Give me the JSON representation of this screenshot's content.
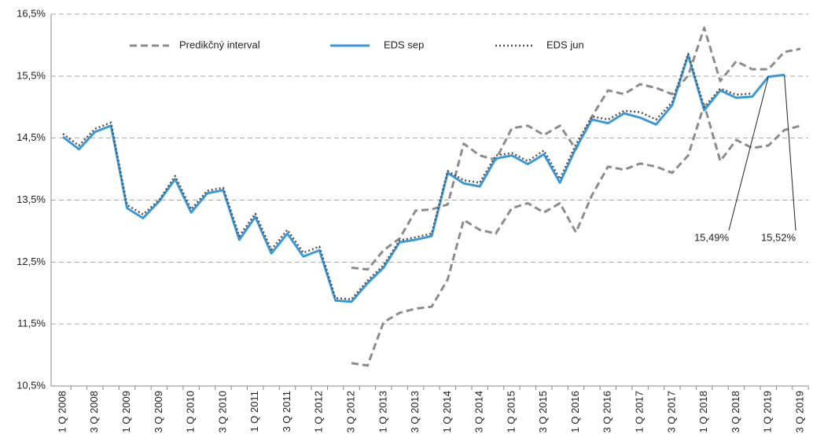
{
  "chart_data": {
    "type": "line",
    "categories": [
      "1 Q 2008",
      null,
      "3 Q 2008",
      null,
      "1 Q 2009",
      null,
      "3 Q 2009",
      null,
      "1 Q 2010",
      null,
      "3 Q 2010",
      null,
      "1 Q 2011",
      null,
      "3 Q 2011",
      null,
      "1 Q 2012",
      null,
      "3 Q 2012",
      null,
      "1 Q 2013",
      null,
      "3 Q 2013",
      null,
      "1 Q 2014",
      null,
      "3 Q 2014",
      null,
      "1 Q 2015",
      null,
      "3 Q 2015",
      null,
      "1 Q 2016",
      null,
      "3 Q 2016",
      null,
      "1 Q 2017",
      null,
      "3 Q 2017",
      null,
      "1 Q 2018",
      null,
      "3 Q 2018",
      null,
      "1 Q 2019",
      null,
      "3 Q 2019"
    ],
    "ylim": [
      10.5,
      16.5
    ],
    "yticks": [
      {
        "value": 10.5,
        "label": "10,5%"
      },
      {
        "value": 11.5,
        "label": "11,5%"
      },
      {
        "value": 12.5,
        "label": "12,5%"
      },
      {
        "value": 13.5,
        "label": "13,5%"
      },
      {
        "value": 14.5,
        "label": "14,5%"
      },
      {
        "value": 15.5,
        "label": "15,5%"
      },
      {
        "value": 16.5,
        "label": "16,5%"
      }
    ],
    "grid": true,
    "legend": "top",
    "series": [
      {
        "name": "Predikčný interval",
        "color": "#8c8c8c",
        "style": "dashed",
        "values": [
          null,
          null,
          null,
          null,
          null,
          null,
          null,
          null,
          null,
          null,
          null,
          null,
          null,
          null,
          null,
          null,
          null,
          null,
          12.41,
          12.38,
          12.69,
          12.88,
          13.33,
          13.35,
          13.43,
          14.41,
          14.22,
          14.15,
          14.66,
          14.7,
          14.55,
          14.7,
          14.32,
          14.85,
          15.27,
          15.21,
          15.37,
          15.31,
          15.21,
          15.51,
          16.28,
          15.42,
          15.74,
          15.61,
          15.61,
          15.89,
          15.94
        ],
        "values_lower": [
          null,
          null,
          null,
          null,
          null,
          null,
          null,
          null,
          null,
          null,
          null,
          null,
          null,
          null,
          null,
          null,
          null,
          null,
          10.87,
          10.83,
          11.53,
          11.68,
          11.75,
          11.78,
          12.22,
          13.18,
          13.02,
          12.96,
          13.37,
          13.45,
          13.3,
          13.45,
          12.98,
          13.58,
          14.04,
          13.99,
          14.09,
          14.04,
          13.94,
          14.22,
          15.04,
          14.13,
          14.47,
          14.34,
          14.38,
          14.63,
          14.7
        ]
      },
      {
        "name": "EDS sep",
        "color": "#3a9ad9",
        "style": "solid",
        "values": [
          14.52,
          14.32,
          14.6,
          14.7,
          13.37,
          13.21,
          13.48,
          13.84,
          13.3,
          13.61,
          13.66,
          12.86,
          13.23,
          12.64,
          12.96,
          12.59,
          12.69,
          11.88,
          11.86,
          12.16,
          12.41,
          12.82,
          12.86,
          12.92,
          13.94,
          13.77,
          13.72,
          14.17,
          14.22,
          14.08,
          14.24,
          13.78,
          14.34,
          14.8,
          14.74,
          14.9,
          14.83,
          14.72,
          15.03,
          15.84,
          14.95,
          15.27,
          15.15,
          15.17,
          15.49,
          15.52,
          null
        ],
        "value_labels": [
          null,
          null,
          null,
          null,
          null,
          null,
          null,
          null,
          null,
          null,
          null,
          null,
          null,
          null,
          null,
          null,
          null,
          null,
          null,
          null,
          null,
          null,
          null,
          null,
          null,
          null,
          null,
          null,
          null,
          null,
          null,
          null,
          null,
          null,
          null,
          null,
          null,
          null,
          null,
          null,
          null,
          null,
          null,
          null,
          "15,49%",
          "15,52%",
          null
        ]
      },
      {
        "name": "EDS jun",
        "color": "#555555",
        "style": "dotted",
        "values": [
          14.57,
          14.38,
          14.65,
          14.75,
          13.42,
          13.27,
          13.5,
          13.89,
          13.35,
          13.65,
          13.7,
          12.92,
          13.28,
          12.7,
          13.02,
          12.65,
          12.75,
          11.92,
          11.9,
          12.2,
          12.45,
          12.85,
          12.9,
          12.96,
          13.97,
          13.82,
          13.78,
          14.22,
          14.26,
          14.13,
          14.3,
          13.84,
          14.4,
          14.85,
          14.8,
          14.94,
          14.92,
          14.8,
          15.08,
          15.86,
          15.0,
          15.3,
          15.2,
          15.22,
          null,
          null,
          null
        ]
      }
    ]
  }
}
